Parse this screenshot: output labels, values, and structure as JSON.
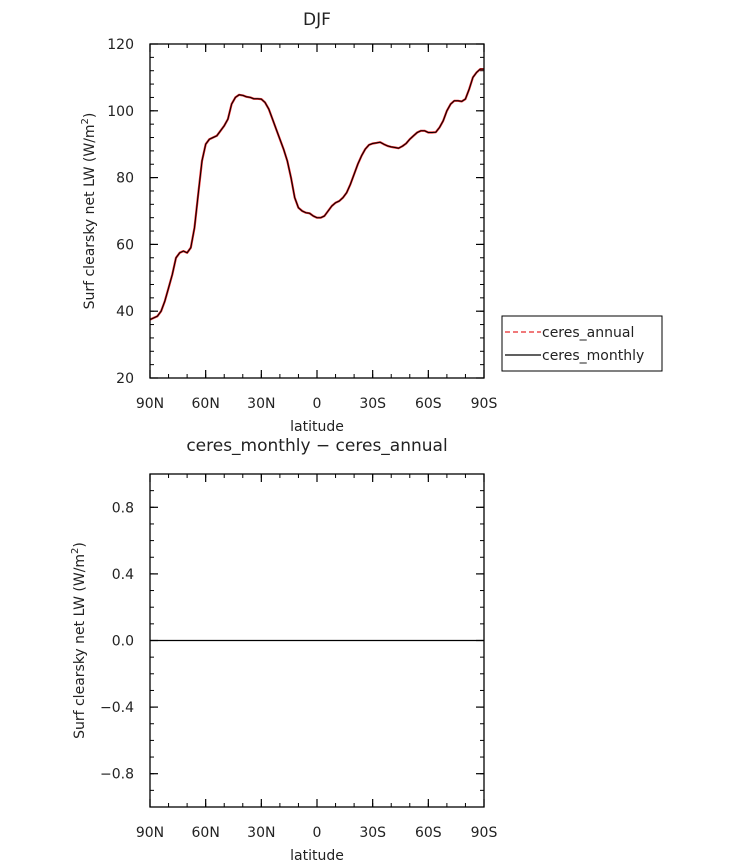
{
  "chart_data": [
    {
      "type": "line",
      "title": "DJF",
      "xlabel": "latitude",
      "ylabel": "Surf clearsky net LW (W/m",
      "ylabel_sup": "2",
      "ylabel_tail": ")",
      "ylim": [
        20,
        120
      ],
      "y_ticks": [
        20,
        40,
        60,
        80,
        100,
        120
      ],
      "y_tick_labels": [
        "20",
        "40",
        "60",
        "80",
        "100",
        "120"
      ],
      "x_ticks": [
        90,
        60,
        30,
        0,
        -30,
        -60,
        -90
      ],
      "x_tick_labels": [
        "90N",
        "60N",
        "30N",
        "0",
        "30S",
        "60S",
        "90S"
      ],
      "legend_position": "right",
      "legend": [
        {
          "label": "ceres_annual",
          "color": "#e8292b",
          "dash": "dashed"
        },
        {
          "label": "ceres_monthly",
          "color": "#000000",
          "dash": "solid"
        }
      ],
      "x": [
        90,
        88,
        86,
        84,
        82,
        80,
        78,
        76,
        74,
        72,
        70,
        68,
        66,
        64,
        62,
        60,
        58,
        56,
        54,
        52,
        50,
        48,
        46,
        44,
        42,
        40,
        38,
        36,
        34,
        32,
        30,
        28,
        26,
        24,
        22,
        20,
        18,
        16,
        14,
        12,
        10,
        8,
        6,
        4,
        2,
        0,
        -2,
        -4,
        -6,
        -8,
        -10,
        -12,
        -14,
        -16,
        -18,
        -20,
        -22,
        -24,
        -26,
        -28,
        -30,
        -32,
        -34,
        -36,
        -38,
        -40,
        -42,
        -44,
        -46,
        -48,
        -50,
        -52,
        -54,
        -56,
        -58,
        -60,
        -62,
        -64,
        -66,
        -68,
        -70,
        -72,
        -74,
        -76,
        -78,
        -80,
        -82,
        -84,
        -86,
        -88,
        -90
      ],
      "series": [
        {
          "name": "ceres_annual",
          "values": [
            37.5,
            38,
            38.5,
            40,
            43,
            47,
            51,
            56,
            57.5,
            58,
            57.5,
            59,
            65,
            75,
            85,
            90,
            91.5,
            92,
            92.5,
            94,
            95.5,
            97.5,
            102,
            104,
            104.8,
            104.6,
            104.2,
            104,
            103.6,
            103.6,
            103.5,
            102.5,
            100.5,
            97.5,
            94.5,
            91.5,
            88.5,
            85,
            80,
            74,
            71,
            70,
            69.5,
            69.3,
            68.5,
            68,
            68,
            68.5,
            70,
            71.5,
            72.5,
            73,
            74,
            75.5,
            78,
            81,
            84,
            86.5,
            88.5,
            89.8,
            90.2,
            90.4,
            90.6,
            90,
            89.5,
            89.2,
            89,
            88.8,
            89.4,
            90.2,
            91.5,
            92.5,
            93.5,
            94,
            94,
            93.5,
            93.5,
            93.6,
            95,
            97,
            100,
            102,
            103,
            103,
            102.8,
            103.5,
            106.5,
            110,
            111.5,
            112.5,
            112.5
          ]
        },
        {
          "name": "ceres_monthly",
          "values": [
            37.5,
            38,
            38.5,
            40,
            43,
            47,
            51,
            56,
            57.5,
            58,
            57.5,
            59,
            65,
            75,
            85,
            90,
            91.5,
            92,
            92.5,
            94,
            95.5,
            97.5,
            102,
            104,
            104.8,
            104.6,
            104.2,
            104,
            103.6,
            103.6,
            103.5,
            102.5,
            100.5,
            97.5,
            94.5,
            91.5,
            88.5,
            85,
            80,
            74,
            71,
            70,
            69.5,
            69.3,
            68.5,
            68,
            68,
            68.5,
            70,
            71.5,
            72.5,
            73,
            74,
            75.5,
            78,
            81,
            84,
            86.5,
            88.5,
            89.8,
            90.2,
            90.4,
            90.6,
            90,
            89.5,
            89.2,
            89,
            88.8,
            89.4,
            90.2,
            91.5,
            92.5,
            93.5,
            94,
            94,
            93.5,
            93.5,
            93.6,
            95,
            97,
            100,
            102,
            103,
            103,
            102.8,
            103.5,
            106.5,
            110,
            111.5,
            112.5,
            112.5
          ]
        }
      ]
    },
    {
      "type": "line",
      "title": "ceres_monthly − ceres_annual",
      "xlabel": "latitude",
      "ylabel": "Surf clearsky net LW (W/m",
      "ylabel_sup": "2",
      "ylabel_tail": ")",
      "ylim": [
        -1,
        1
      ],
      "y_ticks": [
        -0.8,
        -0.4,
        0.0,
        0.4,
        0.8
      ],
      "y_tick_labels": [
        "−0.8",
        "−0.4",
        "0.0",
        "0.4",
        "0.8"
      ],
      "x_ticks": [
        90,
        60,
        30,
        0,
        -30,
        -60,
        -90
      ],
      "x_tick_labels": [
        "90N",
        "60N",
        "30N",
        "0",
        "30S",
        "60S",
        "90S"
      ],
      "x": [
        90,
        -90
      ],
      "series": [
        {
          "values": [
            0,
            0
          ],
          "color": "#000000"
        }
      ]
    }
  ]
}
